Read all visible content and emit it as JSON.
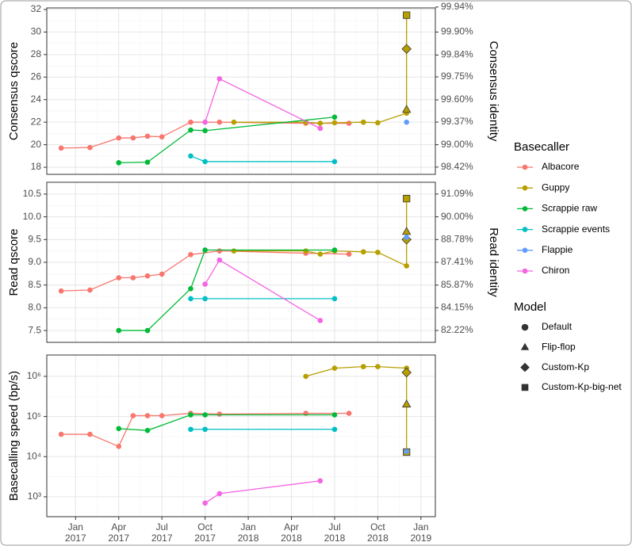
{
  "legend": {
    "title": "Basecaller",
    "items": [
      {
        "name": "Albacore",
        "color": "#f8766d"
      },
      {
        "name": "Guppy",
        "color": "#b79f00"
      },
      {
        "name": "Scrappie raw",
        "color": "#00ba38"
      },
      {
        "name": "Scrappie events",
        "color": "#00bfc4"
      },
      {
        "name": "Flappie",
        "color": "#619cff"
      },
      {
        "name": "Chiron",
        "color": "#f564e3"
      }
    ]
  },
  "model_legend": {
    "title": "Model",
    "items": [
      {
        "name": "Default",
        "shape": "circle"
      },
      {
        "name": "Flip-flop",
        "shape": "triangle"
      },
      {
        "name": "Custom-Kp",
        "shape": "diamond"
      },
      {
        "name": "Custom-Kp-big-net",
        "shape": "square"
      }
    ]
  },
  "chart_data": [
    {
      "type": "line",
      "ylabel": "Consensus qscore",
      "y2label": "Consensus identity",
      "grid": true,
      "ylim": [
        17.37,
        32.14
      ],
      "yticks": [
        18,
        20,
        22,
        24,
        26,
        28,
        30,
        32
      ],
      "y2scale": "phred",
      "y2lim": [
        98.17,
        99.939
      ],
      "y2ticks": [
        {
          "value": 98.42,
          "label": "98.42%"
        },
        {
          "value": 99,
          "label": "99.00%"
        },
        {
          "value": 99.37,
          "label": "99.37%"
        },
        {
          "value": 99.6,
          "label": "99.60%"
        },
        {
          "value": 99.75,
          "label": "99.75%"
        },
        {
          "value": 99.84,
          "label": "99.84%"
        },
        {
          "value": 99.9,
          "label": "99.90%"
        },
        {
          "value": 99.94,
          "label": "99.94%"
        }
      ],
      "series": [
        {
          "name": "Albacore",
          "color": "#f8766d",
          "x": [
            "2016-12",
            "2017-02",
            "2017-04",
            "2017-05",
            "2017-06",
            "2017-07",
            "2017-09",
            "2017-11",
            "2018-05",
            "2018-08"
          ],
          "values": [
            19.7,
            19.75,
            20.6,
            20.6,
            20.75,
            20.7,
            22.0,
            22.0,
            21.9,
            21.9
          ]
        },
        {
          "name": "Guppy",
          "color": "#b79f00",
          "x": [
            "2017-12",
            "2018-05",
            "2018-06",
            "2018-07",
            "2018-09",
            "2018-09",
            "2018-10",
            "2018-12",
            "2018-12",
            "2018-12",
            "2018-12"
          ],
          "values": [
            22.0,
            22.0,
            21.9,
            21.95,
            22.0,
            22.0,
            21.95,
            22.8,
            23.1,
            28.5,
            31.5
          ],
          "models": [
            "Default",
            "Default",
            "Default",
            "Default",
            "Default",
            "Default",
            "Default",
            "Default",
            "Flip-flop",
            "Custom-Kp",
            "Custom-Kp-big-net"
          ]
        },
        {
          "name": "Scrappie raw",
          "color": "#00ba38",
          "x": [
            "2017-04",
            "2017-06",
            "2017-09",
            "2017-10",
            "2018-07"
          ],
          "values": [
            18.4,
            18.45,
            21.3,
            21.25,
            22.45
          ]
        },
        {
          "name": "Scrappie events",
          "color": "#00bfc4",
          "x": [
            "2017-09",
            "2017-10",
            "2018-07"
          ],
          "values": [
            19.0,
            18.5,
            18.5
          ]
        },
        {
          "name": "Flappie",
          "color": "#619cff",
          "x": [
            "2018-12"
          ],
          "values": [
            22.0
          ]
        },
        {
          "name": "Chiron",
          "color": "#f564e3",
          "x": [
            "2017-10",
            "2017-11",
            "2018-06"
          ],
          "values": [
            22.0,
            25.85,
            21.45
          ]
        }
      ]
    },
    {
      "type": "line",
      "ylabel": "Read qscore",
      "y2label": "Read identity",
      "grid": true,
      "ylim": [
        7.24,
        10.76
      ],
      "yticks": [
        7.5,
        {
          "value": 8,
          "label": "8.0"
        },
        8.5,
        {
          "value": 9,
          "label": "9.0"
        },
        9.5,
        {
          "value": 10,
          "label": "10.0"
        },
        10.5
      ],
      "y2scale": "phred",
      "y2lim": [
        81.12,
        91.6
      ],
      "y2ticks": [
        {
          "value": 82.22,
          "label": "82.22%"
        },
        {
          "value": 84.15,
          "label": "84.15%"
        },
        {
          "value": 85.87,
          "label": "85.87%"
        },
        {
          "value": 87.41,
          "label": "87.41%"
        },
        {
          "value": 88.78,
          "label": "88.78%"
        },
        {
          "value": 90,
          "label": "90.00%"
        },
        {
          "value": 91.09,
          "label": "91.09%"
        }
      ],
      "series": [
        {
          "name": "Albacore",
          "color": "#f8766d",
          "x": [
            "2016-12",
            "2017-02",
            "2017-04",
            "2017-05",
            "2017-06",
            "2017-07",
            "2017-09",
            "2017-11",
            "2018-05",
            "2018-08"
          ],
          "values": [
            8.37,
            8.39,
            8.66,
            8.66,
            8.7,
            8.74,
            9.17,
            9.25,
            9.2,
            9.18
          ]
        },
        {
          "name": "Guppy",
          "color": "#b79f00",
          "x": [
            "2017-12",
            "2018-05",
            "2018-06",
            "2018-07",
            "2018-09",
            "2018-09",
            "2018-10",
            "2018-12",
            "2018-12",
            "2018-12",
            "2018-12"
          ],
          "values": [
            9.25,
            9.25,
            9.18,
            9.25,
            9.23,
            9.23,
            9.22,
            8.92,
            9.67,
            9.5,
            10.4
          ],
          "models": [
            "Default",
            "Default",
            "Default",
            "Default",
            "Default",
            "Default",
            "Default",
            "Default",
            "Flip-flop",
            "Custom-Kp",
            "Custom-Kp-big-net"
          ]
        },
        {
          "name": "Scrappie raw",
          "color": "#00ba38",
          "x": [
            "2017-04",
            "2017-06",
            "2017-09",
            "2017-10",
            "2018-07"
          ],
          "values": [
            7.5,
            7.5,
            8.42,
            9.27,
            9.27
          ]
        },
        {
          "name": "Scrappie events",
          "color": "#00bfc4",
          "x": [
            "2017-09",
            "2017-10",
            "2018-07"
          ],
          "values": [
            8.2,
            8.2,
            8.2
          ]
        },
        {
          "name": "Flappie",
          "color": "#619cff",
          "x": [
            "2018-12"
          ],
          "values": [
            9.55
          ]
        },
        {
          "name": "Chiron",
          "color": "#f564e3",
          "x": [
            "2017-10",
            "2017-11",
            "2018-06"
          ],
          "values": [
            8.52,
            9.05,
            7.72
          ]
        }
      ]
    },
    {
      "type": "line",
      "ylabel": "Basecalling speed (bp/s)",
      "grid": true,
      "log_scale": true,
      "ylim": [
        320,
        3400000
      ],
      "yticks": [
        {
          "value": 1000,
          "label": "10³"
        },
        {
          "value": 10000,
          "label": "10⁴"
        },
        {
          "value": 100000,
          "label": "10⁵"
        },
        {
          "value": 1000000,
          "label": "10⁶"
        }
      ],
      "xlim": [
        "2016-11",
        "2019-02"
      ],
      "xticks": [
        {
          "value": "2017-01",
          "label": "Jan 2017"
        },
        {
          "value": "2017-04",
          "label": "Apr 2017"
        },
        {
          "value": "2017-07",
          "label": "Jul 2017"
        },
        {
          "value": "2017-10",
          "label": "Oct 2017"
        },
        {
          "value": "2018-01",
          "label": "Jan 2018"
        },
        {
          "value": "2018-04",
          "label": "Apr 2018"
        },
        {
          "value": "2018-07",
          "label": "Jul 2018"
        },
        {
          "value": "2018-10",
          "label": "Oct 2018"
        },
        {
          "value": "2019-01",
          "label": "Jan 2019"
        }
      ],
      "series": [
        {
          "name": "Albacore",
          "color": "#f8766d",
          "x": [
            "2016-12",
            "2017-02",
            "2017-04",
            "2017-05",
            "2017-06",
            "2017-07",
            "2017-09",
            "2017-11",
            "2018-05",
            "2018-08"
          ],
          "values": [
            36000,
            36000,
            18000,
            105000,
            105000,
            105000,
            120000,
            115000,
            120000,
            120000
          ]
        },
        {
          "name": "Guppy",
          "color": "#b79f00",
          "x": [
            "2018-05",
            "2018-07",
            "2018-09",
            "2018-09",
            "2018-10",
            "2018-12",
            "2018-12",
            "2018-12",
            "2018-12"
          ],
          "values": [
            1000000,
            1600000,
            1750000,
            1750000,
            1750000,
            1600000,
            200000,
            1250000,
            13000
          ],
          "models": [
            "Default",
            "Default",
            "Default",
            "Default",
            "Default",
            "Default",
            "Flip-flop",
            "Custom-Kp",
            "Custom-Kp-big-net"
          ]
        },
        {
          "name": "Scrappie raw",
          "color": "#00ba38",
          "x": [
            "2017-04",
            "2017-06",
            "2017-09",
            "2017-10",
            "2018-07"
          ],
          "values": [
            50000,
            45000,
            110000,
            110000,
            110000
          ]
        },
        {
          "name": "Scrappie events",
          "color": "#00bfc4",
          "x": [
            "2017-09",
            "2017-10",
            "2018-07"
          ],
          "values": [
            48000,
            48000,
            48000
          ]
        },
        {
          "name": "Flappie",
          "color": "#619cff",
          "x": [
            "2018-12"
          ],
          "values": [
            13500
          ]
        },
        {
          "name": "Chiron",
          "color": "#f564e3",
          "x": [
            "2017-10",
            "2017-11",
            "2018-06"
          ],
          "values": [
            700,
            1200,
            2500
          ]
        }
      ]
    }
  ]
}
